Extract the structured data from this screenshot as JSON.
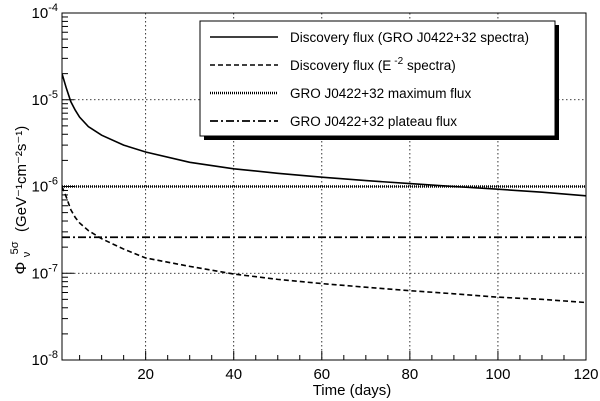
{
  "chart_data": {
    "type": "line",
    "xlabel": "Time (days)",
    "ylabel_main": "Φ",
    "ylabel_sub": "ν",
    "ylabel_sup": "5σ",
    "ylabel_units": "(GeV⁻¹cm⁻²s⁻¹)",
    "xlim": [
      1,
      120
    ],
    "ylim": [
      1e-08,
      0.0001
    ],
    "yscale": "log",
    "grid": true,
    "legend_position": "top-right",
    "x_ticks": [
      20,
      40,
      60,
      80,
      100,
      120
    ],
    "x_tick_labels": [
      "20",
      "40",
      "60",
      "80",
      "100",
      "120"
    ],
    "y_ticks": [
      1e-08,
      1e-07,
      1e-06,
      1e-05,
      0.0001
    ],
    "y_tick_labels": [
      {
        "base": "10",
        "exp": "-8"
      },
      {
        "base": "10",
        "exp": "-7"
      },
      {
        "base": "10",
        "exp": "-6"
      },
      {
        "base": "10",
        "exp": "-5"
      },
      {
        "base": "10",
        "exp": "-4"
      }
    ],
    "series": [
      {
        "name": "Discovery flux (GRO J0422+32 spectra)",
        "style": "solid",
        "x": [
          1,
          2,
          3,
          4,
          5,
          7,
          10,
          15,
          20,
          30,
          40,
          50,
          60,
          70,
          80,
          90,
          100,
          110,
          120
        ],
        "y": [
          2e-05,
          1.35e-05,
          9.5e-06,
          7.6e-06,
          6.3e-06,
          4.9e-06,
          3.9e-06,
          3e-06,
          2.5e-06,
          1.9e-06,
          1.6e-06,
          1.42e-06,
          1.28e-06,
          1.17e-06,
          1.08e-06,
          1e-06,
          9.3e-07,
          8.6e-07,
          7.8e-07
        ]
      },
      {
        "name": "Discovery flux (E",
        "name_sup": "-2",
        "name_suffix": " spectra)",
        "style": "dashed",
        "x": [
          1,
          2,
          3,
          4,
          5,
          7,
          10,
          15,
          20,
          30,
          40,
          50,
          60,
          70,
          80,
          90,
          100,
          110,
          120
        ],
        "y": [
          1e-06,
          7.5e-07,
          5.4e-07,
          4.4e-07,
          3.8e-07,
          3.1e-07,
          2.5e-07,
          1.9e-07,
          1.5e-07,
          1.2e-07,
          9.8e-08,
          8.5e-08,
          7.6e-08,
          6.9e-08,
          6.3e-08,
          5.8e-08,
          5.3e-08,
          5e-08,
          4.6e-08
        ]
      },
      {
        "name": "GRO J0422+32 maximum flux",
        "style": "dotted",
        "x": [
          1,
          120
        ],
        "y": [
          1e-06,
          1e-06
        ]
      },
      {
        "name": "GRO J0422+32 plateau flux",
        "style": "dashdot",
        "x": [
          1,
          120
        ],
        "y": [
          2.6e-07,
          2.6e-07
        ]
      }
    ]
  }
}
